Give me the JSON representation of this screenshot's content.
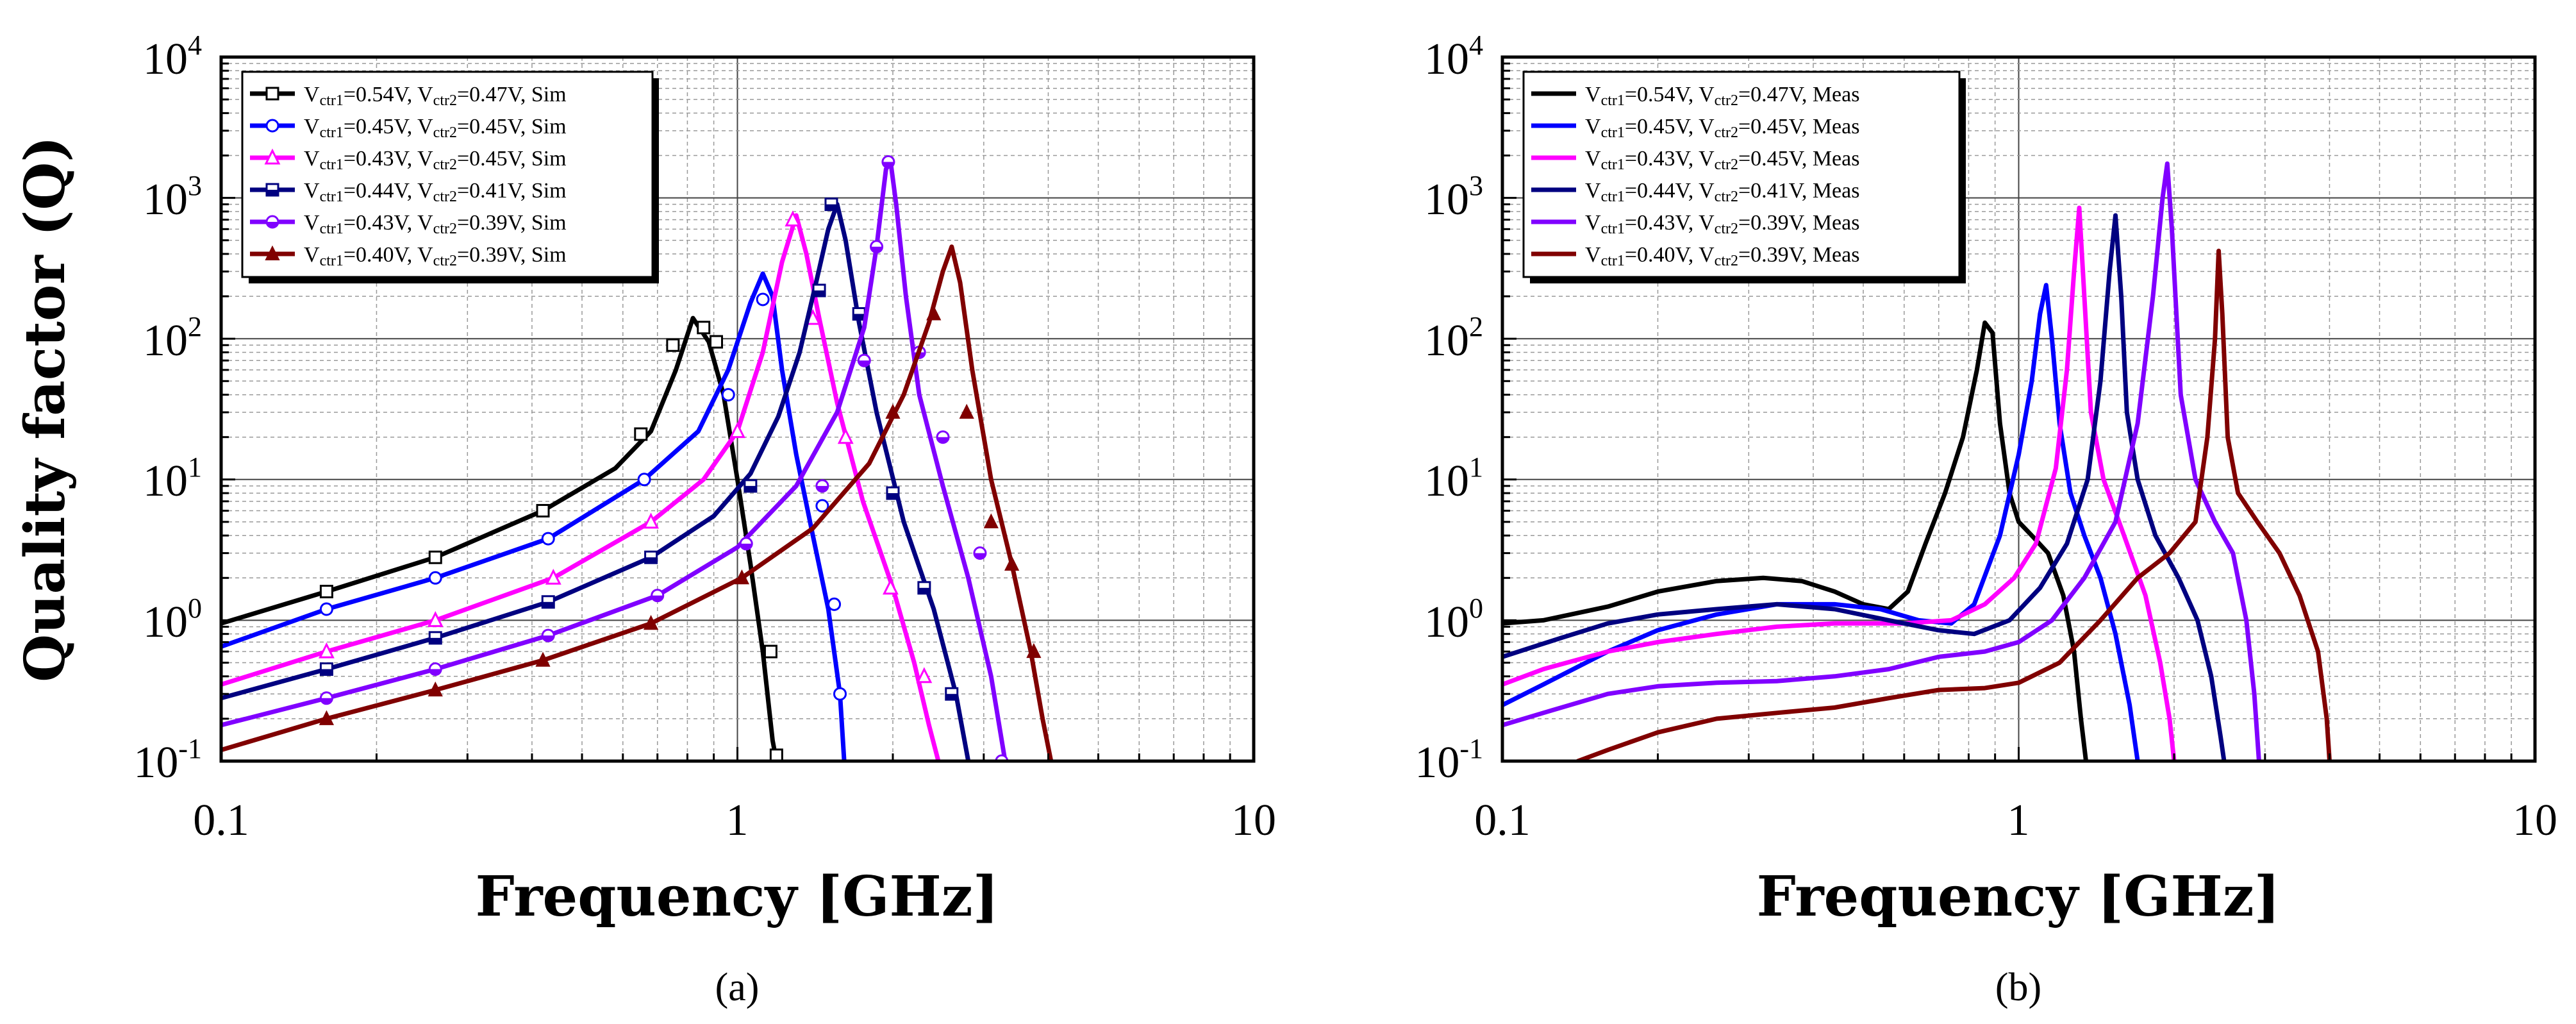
{
  "chart_data": [
    {
      "type": "line",
      "panel": "a",
      "caption": "(a)",
      "xlabel": "Frequency [GHz]",
      "ylabel": "Quality factor (Q)",
      "xscale": "log",
      "yscale": "log",
      "xlim": [
        0.1,
        10
      ],
      "ylim": [
        0.1,
        10000
      ],
      "xticks": [
        "0.1",
        "1",
        "10"
      ],
      "yticks": [
        {
          "base": "10",
          "exp": "-1"
        },
        {
          "base": "10",
          "exp": "0"
        },
        {
          "base": "10",
          "exp": "1"
        },
        {
          "base": "10",
          "exp": "2"
        },
        {
          "base": "10",
          "exp": "3"
        },
        {
          "base": "10",
          "exp": "4"
        }
      ],
      "grid": true,
      "legend_position": "top-left",
      "series": [
        {
          "label": "Vctr1=0.54V, Vctr2=0.47V, Sim",
          "main": "V",
          "sub1": "ctr1",
          "mid": "=0.54V, V",
          "sub2": "ctr2",
          "tail": "=0.47V, Sim",
          "color": "#000000",
          "marker": "square",
          "x": [
            0.1,
            0.16,
            0.26,
            0.42,
            0.58,
            0.68,
            0.76,
            0.82,
            0.88,
            0.94,
            1.0,
            1.06,
            1.12,
            1.17,
            1.19
          ],
          "y": [
            0.95,
            1.6,
            2.8,
            6,
            12,
            22,
            60,
            140,
            95,
            40,
            10,
            2.5,
            0.6,
            0.14,
            0.1
          ],
          "markers_x": [
            0.16,
            0.26,
            0.42,
            0.65,
            0.75,
            0.86,
            0.91,
            1.16,
            1.19
          ],
          "markers_y": [
            1.6,
            2.8,
            6,
            21,
            90,
            120,
            95,
            0.6,
            0.11
          ]
        },
        {
          "label": "Vctr1=0.45V, Vctr2=0.45V, Sim",
          "main": "V",
          "sub1": "ctr1",
          "mid": "=0.45V, V",
          "sub2": "ctr2",
          "tail": "=0.45V, Sim",
          "color": "#0000ff",
          "marker": "circle",
          "x": [
            0.1,
            0.16,
            0.26,
            0.43,
            0.66,
            0.84,
            0.96,
            1.06,
            1.12,
            1.17,
            1.22,
            1.3,
            1.4,
            1.5,
            1.58,
            1.61
          ],
          "y": [
            0.65,
            1.2,
            2.0,
            3.8,
            10,
            22,
            60,
            180,
            290,
            200,
            60,
            15,
            4,
            1.2,
            0.3,
            0.1
          ],
          "markers_x": [
            0.16,
            0.26,
            0.43,
            0.66,
            0.96,
            1.12,
            1.46,
            1.54,
            1.58
          ],
          "markers_y": [
            1.2,
            2.0,
            3.8,
            10,
            40,
            190,
            6.5,
            1.3,
            0.3
          ]
        },
        {
          "label": "Vctr1=0.43V, Vctr2=0.45V, Sim",
          "main": "V",
          "sub1": "ctr1",
          "mid": "=0.43V, V",
          "sub2": "ctr2",
          "tail": "=0.45V, Sim",
          "color": "#ff00ff",
          "marker": "triangle",
          "x": [
            0.1,
            0.16,
            0.26,
            0.44,
            0.68,
            0.86,
            1.0,
            1.12,
            1.22,
            1.3,
            1.36,
            1.44,
            1.56,
            1.75,
            2.0,
            2.2,
            2.35,
            2.45
          ],
          "y": [
            0.35,
            0.6,
            1.0,
            2.0,
            5,
            10,
            22,
            80,
            350,
            750,
            400,
            140,
            35,
            7,
            1.7,
            0.5,
            0.18,
            0.1
          ],
          "markers_x": [
            0.16,
            0.26,
            0.44,
            0.68,
            1.0,
            1.28,
            1.4,
            1.62,
            1.98,
            2.3
          ],
          "markers_y": [
            0.6,
            1.0,
            2.0,
            5,
            22,
            700,
            140,
            20,
            1.7,
            0.4
          ]
        },
        {
          "label": "Vctr1=0.44V, Vctr2=0.41V, Sim",
          "main": "V",
          "sub1": "ctr1",
          "mid": "=0.44V, V",
          "sub2": "ctr2",
          "tail": "=0.41V, Sim",
          "color": "#000080",
          "marker": "halfsquare",
          "x": [
            0.1,
            0.16,
            0.26,
            0.43,
            0.68,
            0.9,
            1.06,
            1.2,
            1.32,
            1.42,
            1.5,
            1.56,
            1.62,
            1.72,
            1.86,
            2.1,
            2.4,
            2.65,
            2.8
          ],
          "y": [
            0.28,
            0.45,
            0.75,
            1.35,
            2.8,
            5.5,
            11,
            28,
            80,
            250,
            600,
            900,
            500,
            130,
            30,
            5,
            1.2,
            0.3,
            0.1
          ],
          "markers_x": [
            0.16,
            0.26,
            0.43,
            0.68,
            1.06,
            1.44,
            1.52,
            1.72,
            2.0,
            2.3,
            2.6
          ],
          "markers_y": [
            0.45,
            0.75,
            1.35,
            2.8,
            9,
            220,
            900,
            150,
            8,
            1.7,
            0.3
          ]
        },
        {
          "label": "Vctr1=0.43V, Vctr2=0.39V, Sim",
          "main": "V",
          "sub1": "ctr1",
          "mid": "=0.43V, V",
          "sub2": "ctr2",
          "tail": "=0.39V, Sim",
          "color": "#8000ff",
          "marker": "halfcircle",
          "x": [
            0.1,
            0.16,
            0.26,
            0.43,
            0.7,
            1.0,
            1.3,
            1.56,
            1.76,
            1.86,
            1.94,
            1.98,
            2.03,
            2.12,
            2.25,
            2.5,
            2.8,
            3.1,
            3.3
          ],
          "y": [
            0.18,
            0.28,
            0.45,
            0.78,
            1.5,
            3.3,
            9,
            30,
            120,
            450,
            1600,
            1800,
            900,
            200,
            40,
            9,
            2,
            0.4,
            0.1
          ],
          "markers_x": [
            0.16,
            0.26,
            0.43,
            0.7,
            1.04,
            1.46,
            1.76,
            1.86,
            1.96,
            2.25,
            2.5,
            2.95,
            3.25
          ],
          "markers_y": [
            0.28,
            0.45,
            0.78,
            1.5,
            3.5,
            9,
            70,
            450,
            1800,
            80,
            20,
            3,
            0.1
          ]
        },
        {
          "label": "Vctr1=0.40V, Vctr2=0.39V, Sim",
          "main": "V",
          "sub1": "ctr1",
          "mid": "=0.40V, V",
          "sub2": "ctr2",
          "tail": "=0.39V, Sim",
          "color": "#800000",
          "marker": "filledtriangle",
          "x": [
            0.1,
            0.16,
            0.26,
            0.42,
            0.68,
            1.02,
            1.4,
            1.8,
            2.1,
            2.35,
            2.5,
            2.6,
            2.7,
            2.85,
            3.1,
            3.4,
            3.7,
            3.9,
            4.05
          ],
          "y": [
            0.12,
            0.2,
            0.32,
            0.52,
            0.95,
            2.0,
            4.5,
            13,
            40,
            130,
            300,
            450,
            250,
            60,
            10,
            2.5,
            0.6,
            0.2,
            0.1
          ],
          "markers_x": [
            0.16,
            0.26,
            0.42,
            0.68,
            1.02,
            2.0,
            2.4,
            2.78,
            3.1,
            3.4,
            3.75
          ],
          "markers_y": [
            0.2,
            0.32,
            0.52,
            0.95,
            2.0,
            30,
            150,
            30,
            5,
            2.5,
            0.6
          ]
        }
      ]
    },
    {
      "type": "line",
      "panel": "b",
      "caption": "(b)",
      "xlabel": "Frequency [GHz]",
      "ylabel": "",
      "xscale": "log",
      "yscale": "log",
      "xlim": [
        0.1,
        10
      ],
      "ylim": [
        0.1,
        10000
      ],
      "xticks": [
        "0.1",
        "1",
        "10"
      ],
      "yticks": [
        {
          "base": "10",
          "exp": "-1"
        },
        {
          "base": "10",
          "exp": "0"
        },
        {
          "base": "10",
          "exp": "1"
        },
        {
          "base": "10",
          "exp": "2"
        },
        {
          "base": "10",
          "exp": "3"
        },
        {
          "base": "10",
          "exp": "4"
        }
      ],
      "grid": true,
      "legend_position": "top-left",
      "series": [
        {
          "label": "Vctr1=0.54V, Vctr2=0.47V, Meas",
          "main": "V",
          "sub1": "ctr1",
          "mid": "=0.54V, V",
          "sub2": "ctr2",
          "tail": "=0.47V, Meas",
          "color": "#000000",
          "marker": "none",
          "x": [
            0.1,
            0.12,
            0.16,
            0.2,
            0.26,
            0.32,
            0.38,
            0.44,
            0.5,
            0.56,
            0.61,
            0.66,
            0.72,
            0.78,
            0.83,
            0.86,
            0.89,
            0.92,
            0.96,
            1.0,
            1.06,
            1.14,
            1.22,
            1.28,
            1.32,
            1.35
          ],
          "y": [
            0.95,
            1.0,
            1.25,
            1.6,
            1.9,
            2.0,
            1.9,
            1.6,
            1.3,
            1.2,
            1.6,
            3.5,
            8,
            20,
            60,
            130,
            110,
            25,
            8,
            5,
            4,
            3,
            1.5,
            0.6,
            0.2,
            0.1
          ]
        },
        {
          "label": "Vctr1=0.45V, Vctr2=0.45V, Meas",
          "main": "V",
          "sub1": "ctr1",
          "mid": "=0.45V, V",
          "sub2": "ctr2",
          "tail": "=0.45V, Meas",
          "color": "#0000ff",
          "marker": "none",
          "x": [
            0.1,
            0.12,
            0.16,
            0.2,
            0.26,
            0.34,
            0.44,
            0.54,
            0.64,
            0.74,
            0.82,
            0.92,
            1.0,
            1.06,
            1.1,
            1.13,
            1.16,
            1.2,
            1.26,
            1.34,
            1.44,
            1.54,
            1.64,
            1.7
          ],
          "y": [
            0.25,
            0.35,
            0.6,
            0.85,
            1.1,
            1.3,
            1.3,
            1.2,
            1.0,
            0.95,
            1.3,
            4,
            15,
            50,
            150,
            240,
            100,
            25,
            8,
            4,
            2,
            0.8,
            0.25,
            0.1
          ]
        },
        {
          "label": "Vctr1=0.43V, Vctr2=0.45V, Meas",
          "main": "V",
          "sub1": "ctr1",
          "mid": "=0.43V, V",
          "sub2": "ctr2",
          "tail": "=0.45V, Meas",
          "color": "#ff00ff",
          "marker": "none",
          "x": [
            0.1,
            0.12,
            0.16,
            0.2,
            0.26,
            0.34,
            0.44,
            0.6,
            0.74,
            0.86,
            0.98,
            1.08,
            1.18,
            1.24,
            1.28,
            1.31,
            1.34,
            1.38,
            1.46,
            1.6,
            1.76,
            1.88,
            1.96,
            2.0
          ],
          "y": [
            0.35,
            0.45,
            0.6,
            0.7,
            0.8,
            0.9,
            0.95,
            0.95,
            1.0,
            1.3,
            2.0,
            3.5,
            12,
            60,
            300,
            850,
            200,
            30,
            10,
            4,
            1.5,
            0.5,
            0.2,
            0.1
          ]
        },
        {
          "label": "Vctr1=0.44V, Vctr2=0.41V, Meas",
          "main": "V",
          "sub1": "ctr1",
          "mid": "=0.44V, V",
          "sub2": "ctr2",
          "tail": "=0.41V, Meas",
          "color": "#000080",
          "marker": "none",
          "x": [
            0.1,
            0.13,
            0.16,
            0.2,
            0.26,
            0.34,
            0.44,
            0.56,
            0.7,
            0.82,
            0.96,
            1.1,
            1.24,
            1.36,
            1.44,
            1.5,
            1.54,
            1.58,
            1.62,
            1.7,
            1.84,
            2.04,
            2.22,
            2.36,
            2.46,
            2.5
          ],
          "y": [
            0.55,
            0.75,
            0.95,
            1.1,
            1.2,
            1.3,
            1.2,
            1.0,
            0.85,
            0.8,
            1.0,
            1.7,
            3.5,
            10,
            50,
            300,
            750,
            200,
            30,
            10,
            4,
            2,
            1.0,
            0.4,
            0.15,
            0.1
          ]
        },
        {
          "label": "Vctr1=0.43V, Vctr2=0.39V, Meas",
          "main": "V",
          "sub1": "ctr1",
          "mid": "=0.43V, V",
          "sub2": "ctr2",
          "tail": "=0.39V, Meas",
          "color": "#8000ff",
          "marker": "none",
          "x": [
            0.1,
            0.12,
            0.16,
            0.2,
            0.26,
            0.34,
            0.44,
            0.56,
            0.7,
            0.86,
            1.0,
            1.16,
            1.34,
            1.54,
            1.7,
            1.82,
            1.9,
            1.94,
            1.98,
            2.06,
            2.2,
            2.4,
            2.6,
            2.76,
            2.86,
            2.92
          ],
          "y": [
            0.18,
            0.22,
            0.3,
            0.34,
            0.36,
            0.37,
            0.4,
            0.45,
            0.55,
            0.6,
            0.7,
            1.0,
            2.0,
            5,
            25,
            200,
            1000,
            1750,
            600,
            40,
            10,
            5,
            3,
            1.0,
            0.3,
            0.1
          ]
        },
        {
          "label": "Vctr1=0.40V, Vctr2=0.39V, Meas",
          "main": "V",
          "sub1": "ctr1",
          "mid": "=0.40V, V",
          "sub2": "ctr2",
          "tail": "=0.39V, Meas",
          "color": "#800000",
          "marker": "none",
          "x": [
            0.14,
            0.16,
            0.2,
            0.26,
            0.34,
            0.44,
            0.56,
            0.7,
            0.86,
            1.0,
            1.2,
            1.44,
            1.7,
            1.96,
            2.2,
            2.32,
            2.4,
            2.44,
            2.48,
            2.54,
            2.66,
            2.9,
            3.2,
            3.5,
            3.8,
            3.95,
            4.0
          ],
          "y": [
            0.1,
            0.12,
            0.16,
            0.2,
            0.22,
            0.24,
            0.28,
            0.32,
            0.33,
            0.36,
            0.5,
            1.0,
            2.0,
            3.0,
            5,
            20,
            100,
            420,
            150,
            20,
            8,
            5,
            3,
            1.5,
            0.6,
            0.2,
            0.1
          ]
        }
      ]
    }
  ]
}
